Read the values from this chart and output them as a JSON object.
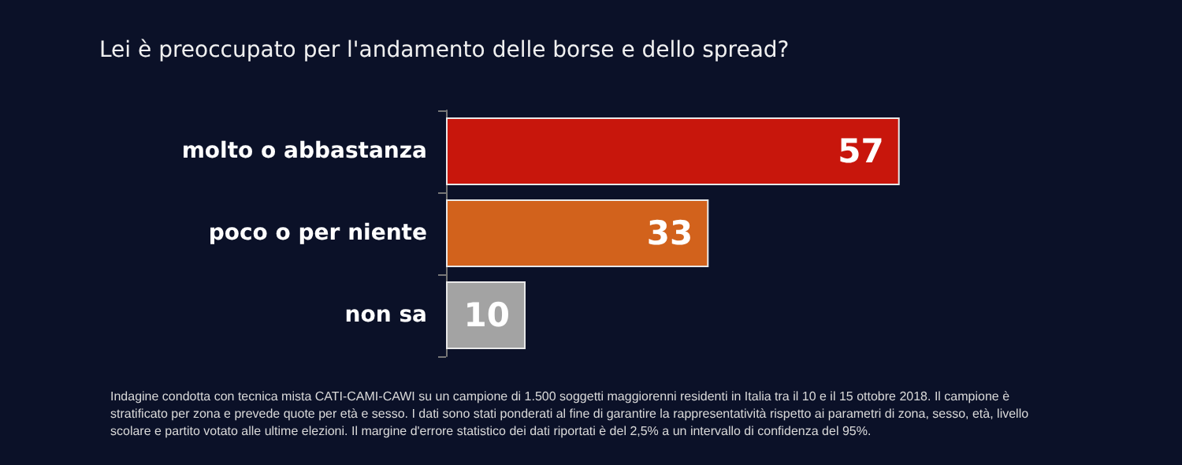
{
  "chart_data": {
    "type": "bar",
    "orientation": "horizontal",
    "title": "Lei è preoccupato per l'andamento delle borse e dello spread?",
    "categories": [
      "molto o abbastanza",
      "poco o per niente",
      "non sa"
    ],
    "values": [
      57,
      33,
      10
    ],
    "colors": [
      "#c8160c",
      "#d2621c",
      "#a3a3a3"
    ],
    "data_labels": true,
    "tick_labels": "y",
    "annotations": [
      "Indagine condotta con tecnica mista CATI-CAMI-CAWI su un campione di 1.500 soggetti maggiorenni residenti in Italia tra il 10 e il 15 ottobre 2018. Il campione è stratificato per zona e prevede quote per età e sesso. I dati sono stati ponderati al fine di garantire la rappresentatività rispetto ai parametri di zona, sesso, età, livello scolare e partito votato alle ultime elezioni. Il margine d'errore statistico dei dati riportati è del 2,5% a un intervallo di confidenza del 95%."
    ]
  }
}
